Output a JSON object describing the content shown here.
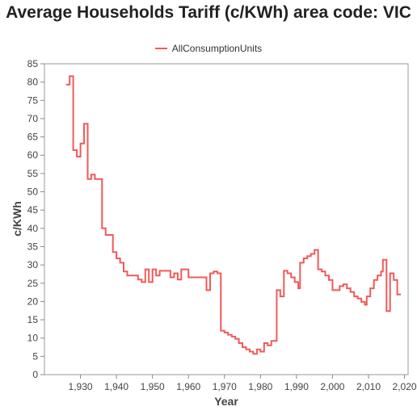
{
  "chart_data": {
    "type": "line",
    "title": "Average Households Tariff (c/KWh) area code: VIC",
    "xlabel": "Year",
    "ylabel": "c/KWh",
    "xlim": [
      1920,
      2021
    ],
    "ylim": [
      0,
      85
    ],
    "xticks": [
      1930,
      1940,
      1950,
      1960,
      1970,
      1980,
      1990,
      2000,
      2010,
      2020
    ],
    "xtick_labels": [
      "1,930",
      "1,940",
      "1,950",
      "1,960",
      "1,970",
      "1,980",
      "1,990",
      "2,000",
      "2,010",
      "2,020"
    ],
    "yticks": [
      0,
      5,
      10,
      15,
      20,
      25,
      30,
      35,
      40,
      45,
      50,
      55,
      60,
      65,
      70,
      75,
      80,
      85
    ],
    "legend_position": "top",
    "grid": false,
    "step": true,
    "series": [
      {
        "name": "AllConsumptionUnits",
        "color": "#f05a5a",
        "points": [
          [
            1926,
            79.3
          ],
          [
            1927,
            81.6
          ],
          [
            1928,
            61.4
          ],
          [
            1929,
            59.6
          ],
          [
            1930,
            63.2
          ],
          [
            1931,
            68.6
          ],
          [
            1932,
            53.5
          ],
          [
            1933,
            54.7
          ],
          [
            1934,
            53.5
          ],
          [
            1936,
            40.0
          ],
          [
            1937,
            38.2
          ],
          [
            1939,
            33.5
          ],
          [
            1940,
            31.8
          ],
          [
            1941,
            30.6
          ],
          [
            1942,
            28.2
          ],
          [
            1943,
            27.1
          ],
          [
            1946,
            26.0
          ],
          [
            1947,
            25.3
          ],
          [
            1948,
            28.8
          ],
          [
            1949,
            25.3
          ],
          [
            1950,
            28.8
          ],
          [
            1951,
            27.1
          ],
          [
            1952,
            28.4
          ],
          [
            1955,
            26.6
          ],
          [
            1956,
            27.7
          ],
          [
            1957,
            26.0
          ],
          [
            1958,
            28.8
          ],
          [
            1960,
            26.6
          ],
          [
            1965,
            23.1
          ],
          [
            1966,
            27.7
          ],
          [
            1967,
            28.2
          ],
          [
            1968,
            27.7
          ],
          [
            1969,
            12.0
          ],
          [
            1970,
            11.5
          ],
          [
            1971,
            10.9
          ],
          [
            1972,
            10.4
          ],
          [
            1973,
            9.8
          ],
          [
            1974,
            8.6
          ],
          [
            1975,
            7.5
          ],
          [
            1976,
            6.9
          ],
          [
            1977,
            6.3
          ],
          [
            1978,
            5.7
          ],
          [
            1979,
            6.9
          ],
          [
            1980,
            6.3
          ],
          [
            1981,
            8.6
          ],
          [
            1982,
            8.0
          ],
          [
            1983,
            9.2
          ],
          [
            1984,
            9.2
          ],
          [
            1984.5,
            23.1
          ],
          [
            1985.5,
            21.4
          ],
          [
            1986.5,
            28.4
          ],
          [
            1987.5,
            27.7
          ],
          [
            1988.5,
            26.6
          ],
          [
            1989.5,
            25.3
          ],
          [
            1990.5,
            23.6
          ],
          [
            1991,
            30.6
          ],
          [
            1992,
            31.8
          ],
          [
            1993,
            32.4
          ],
          [
            1994,
            33.0
          ],
          [
            1995,
            34.1
          ],
          [
            1996,
            28.8
          ],
          [
            1997,
            28.2
          ],
          [
            1998,
            27.1
          ],
          [
            1999,
            25.9
          ],
          [
            2000,
            23.1
          ],
          [
            2002,
            24.2
          ],
          [
            2003,
            24.7
          ],
          [
            2004,
            23.6
          ],
          [
            2005,
            22.6
          ],
          [
            2006,
            21.4
          ],
          [
            2007,
            20.8
          ],
          [
            2008,
            19.9
          ],
          [
            2009,
            19.1
          ],
          [
            2009.5,
            21.4
          ],
          [
            2010.5,
            23.6
          ],
          [
            2011.5,
            25.9
          ],
          [
            2012.5,
            27.1
          ],
          [
            2013.5,
            28.2
          ],
          [
            2014,
            31.4
          ],
          [
            2015,
            17.4
          ],
          [
            2016,
            27.7
          ],
          [
            2017,
            25.9
          ],
          [
            2018,
            21.9
          ],
          [
            2019,
            21.9
          ]
        ]
      }
    ]
  }
}
